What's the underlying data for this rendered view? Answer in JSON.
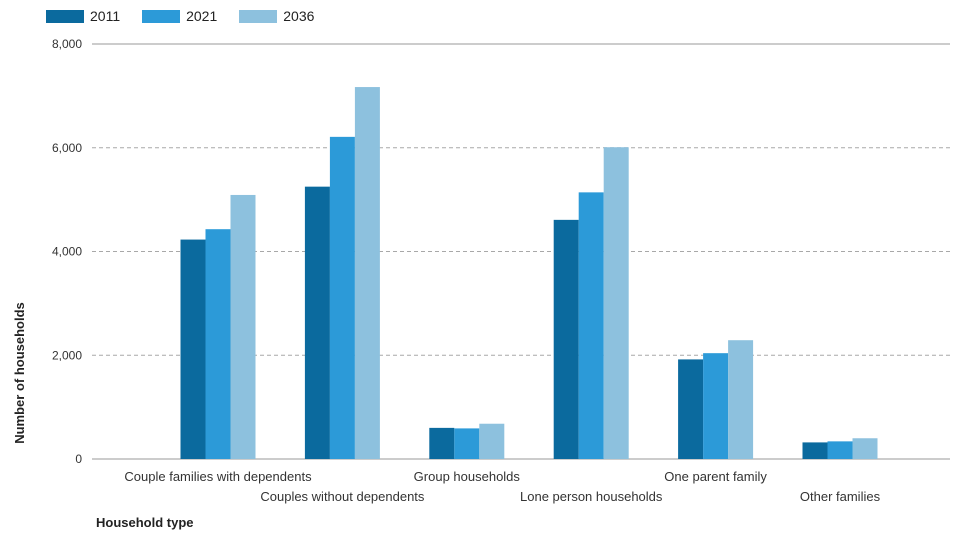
{
  "chart_data": {
    "type": "bar",
    "title": "",
    "xlabel": "Household type",
    "ylabel": "Number of households",
    "ylim": [
      0,
      8000
    ],
    "yticks": [
      0,
      2000,
      4000,
      6000,
      8000
    ],
    "ytick_labels": [
      "0",
      "2,000",
      "4,000",
      "6,000",
      "8,000"
    ],
    "grid": true,
    "legend_position": "top-left",
    "categories": [
      "Couple families with dependents",
      "Couples without dependents",
      "Group households",
      "Lone person households",
      "One parent family",
      "Other families"
    ],
    "series": [
      {
        "name": "2011",
        "color": "#0B6A9E",
        "values": [
          4230,
          5250,
          600,
          4610,
          1920,
          320
        ]
      },
      {
        "name": "2021",
        "color": "#2C9AD8",
        "values": [
          4430,
          6210,
          590,
          5140,
          2040,
          340
        ]
      },
      {
        "name": "2036",
        "color": "#8DC1DE",
        "values": [
          5090,
          7170,
          680,
          6010,
          2290,
          400
        ]
      }
    ]
  }
}
